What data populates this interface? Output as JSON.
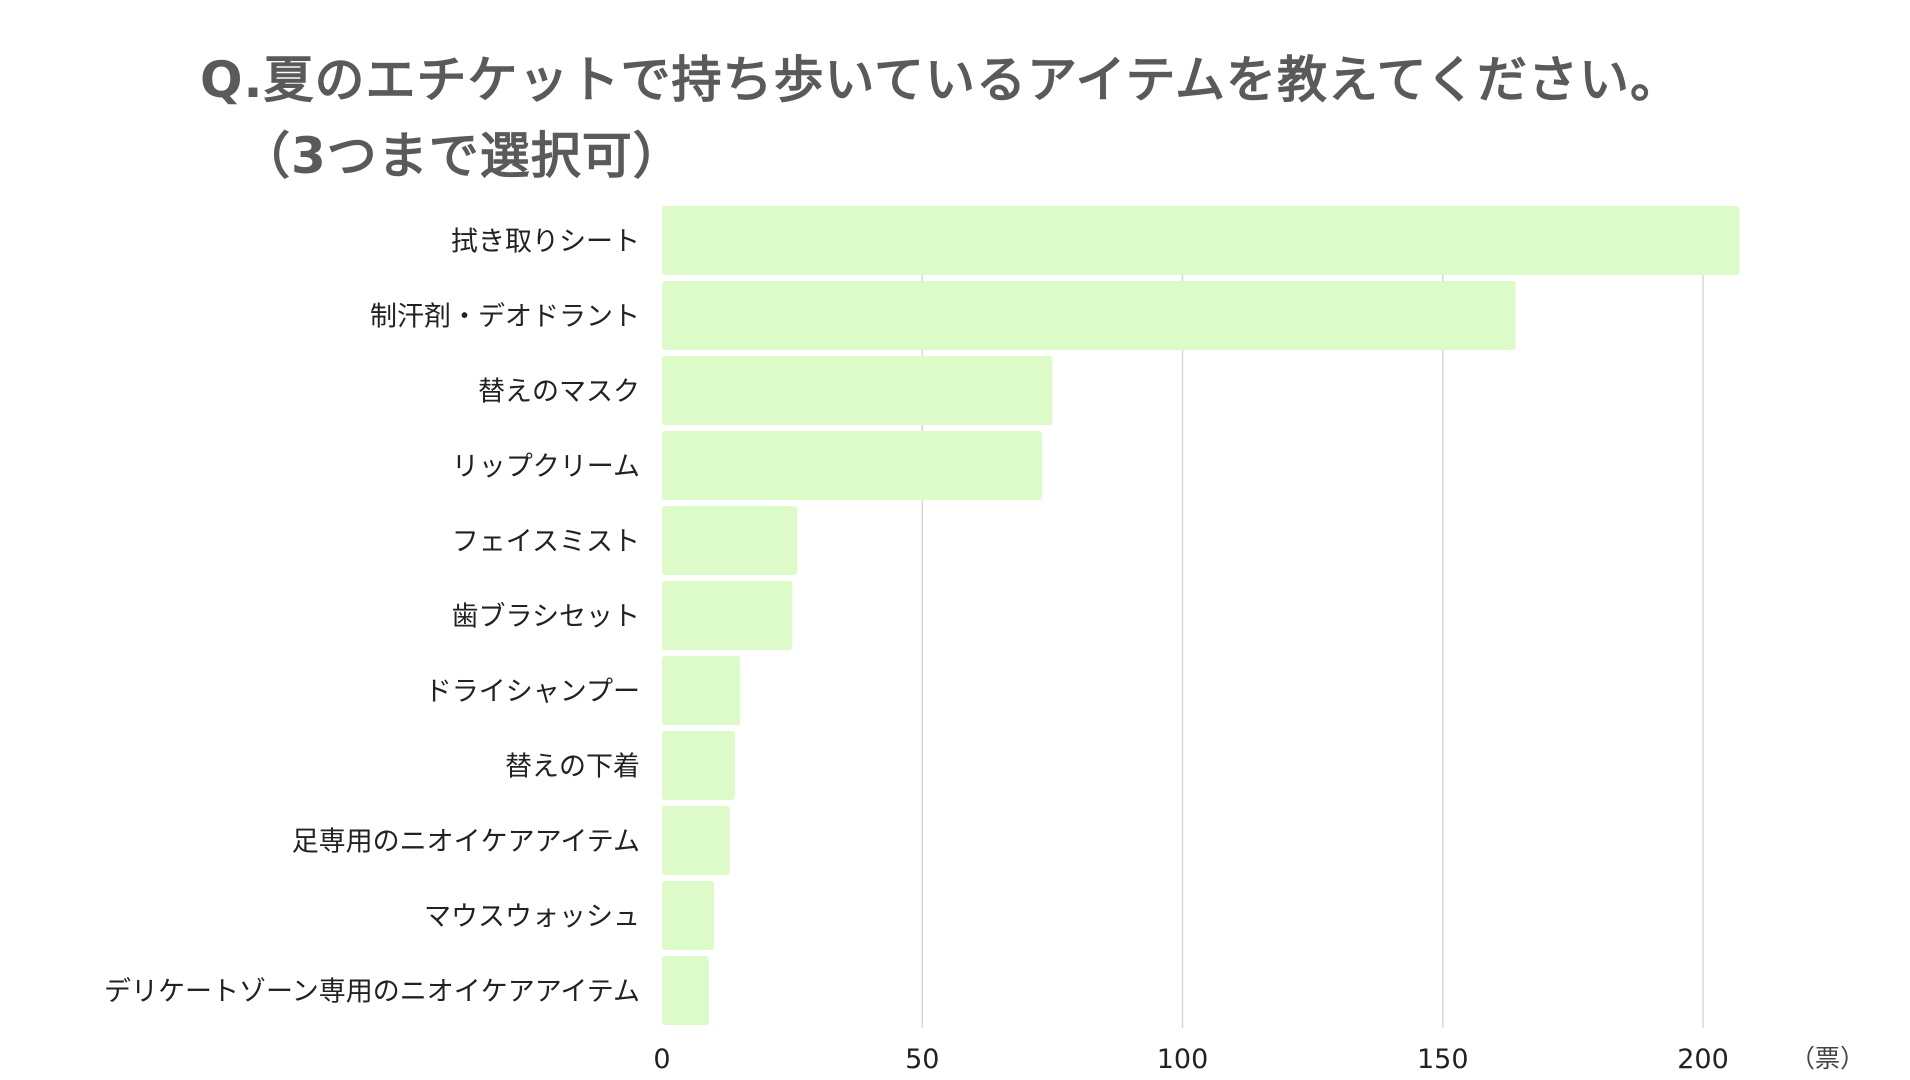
{
  "title": {
    "line1": "Q.夏のエチケットで持ち歩いているアイテムを教えてください。",
    "line2": "（3つまで選択可）"
  },
  "chart_data": {
    "type": "bar",
    "orientation": "horizontal",
    "categories": [
      "拭き取りシート",
      "制汗剤・デオドラント",
      "替えのマスク",
      "リップクリーム",
      "フェイスミスト",
      "歯ブラシセット",
      "ドライシャンプー",
      "替えの下着",
      "足専用のニオイケアアイテム",
      "マウスウォッシュ",
      "デリケートゾーン専用のニオイケアアイテム"
    ],
    "values": [
      207,
      164,
      75,
      73,
      26,
      25,
      15,
      14,
      13,
      10,
      9
    ],
    "xlim": [
      0,
      210
    ],
    "xticks": [
      0,
      50,
      100,
      150,
      200
    ],
    "unit": "（票）",
    "grid": true,
    "bar_color": "#dcfbc8",
    "grid_color": "#d8d8d8"
  }
}
